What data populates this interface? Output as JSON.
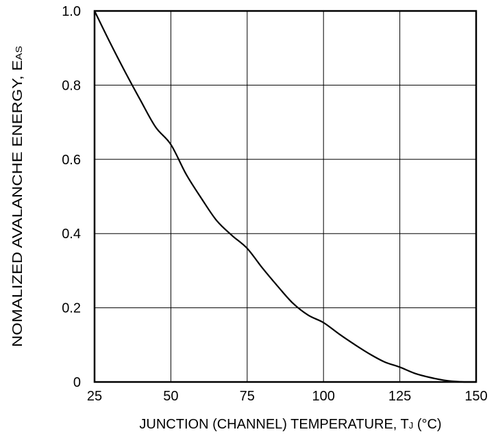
{
  "chart_data": {
    "type": "line",
    "title": "",
    "xlabel": {
      "main": "JUNCTION (CHANNEL) TEMPERATURE, T",
      "sub": "J",
      "unit": " (°C)"
    },
    "ylabel": {
      "main": "NOMALIZED AVALANCHE ENERGY, E",
      "sub": "AS"
    },
    "xlim": [
      25,
      150
    ],
    "ylim": [
      0,
      1.0
    ],
    "x_ticks": [
      25,
      50,
      75,
      100,
      125,
      150
    ],
    "x_tick_labels": [
      "25",
      "50",
      "75",
      "100",
      "125",
      "150"
    ],
    "y_ticks": [
      0,
      0.2,
      0.4,
      0.6,
      0.8,
      1.0
    ],
    "y_tick_labels": [
      "0",
      "0.2",
      "0.4",
      "0.6",
      "0.8",
      "1.0"
    ],
    "grid": true,
    "colors": {
      "line": "#000000",
      "grid": "#000000",
      "background": "#ffffff"
    },
    "series": [
      {
        "x": [
          25,
          30,
          35,
          40,
          45,
          50,
          55,
          60,
          65,
          70,
          75,
          80,
          85,
          90,
          95,
          100,
          105,
          110,
          115,
          120,
          125,
          130,
          135,
          140,
          145,
          148,
          150
        ],
        "values": [
          1.0,
          0.916,
          0.836,
          0.76,
          0.687,
          0.64,
          0.56,
          0.495,
          0.435,
          0.395,
          0.36,
          0.307,
          0.258,
          0.212,
          0.18,
          0.16,
          0.13,
          0.102,
          0.076,
          0.054,
          0.04,
          0.023,
          0.012,
          0.004,
          0.0005,
          0.0,
          0.0
        ]
      }
    ]
  }
}
